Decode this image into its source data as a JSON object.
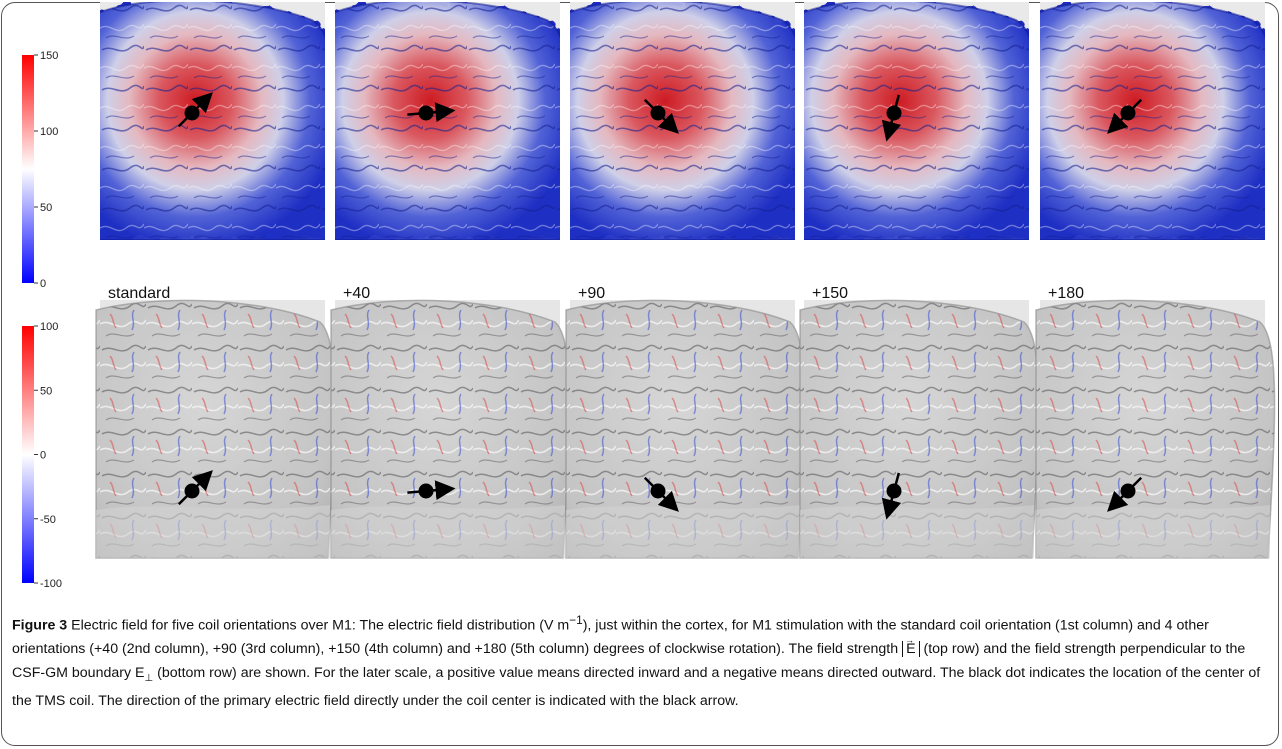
{
  "colorbars": {
    "top": {
      "ticks": [
        "150",
        "100",
        "50",
        "0"
      ],
      "values": [
        150,
        100,
        50,
        0
      ],
      "min": 0,
      "max": 150,
      "colors": [
        "#ff0000",
        "#ffffff",
        "#0000ff"
      ]
    },
    "bottom": {
      "ticks": [
        "100",
        "50",
        "0",
        "-50",
        "-100"
      ],
      "values": [
        100,
        50,
        0,
        -50,
        -100
      ],
      "min": -100,
      "max": 100,
      "colors": [
        "#ff0000",
        "#ffffff",
        "#0000ff"
      ]
    }
  },
  "columns": [
    {
      "label": "standard",
      "angle": 0
    },
    {
      "label": "+40",
      "angle": 40
    },
    {
      "label": "+90",
      "angle": 90
    },
    {
      "label": "+150",
      "angle": 150
    },
    {
      "label": "+180",
      "angle": 180
    }
  ],
  "caption": {
    "figure_num": "Figure 3",
    "part1": " Electric field for five coil orientations over M1: The electric field distribution (V m",
    "unit_exp": "−1",
    "part2": "), just within the cortex, for M1 stimulation with the standard coil orientation (1st column) and 4 other orientations (+40 (2nd column), +90 (3rd column), +150 (4th column) and +180 (5th column) degrees of clockwise rotation). The field strength ",
    "abs_e": "E",
    "vec_mark": "→",
    "part3": " (top row) and the field strength perpendicular to the CSF-GM boundary E",
    "perp": "⊥",
    "part4": " (bottom row) are shown. For the later scale, a positive value means directed inward and a negative means directed outward. The black dot indicates the location of the center of the TMS coil. The direction of the primary electric field directly under the coil center is indicated with the black arrow."
  }
}
